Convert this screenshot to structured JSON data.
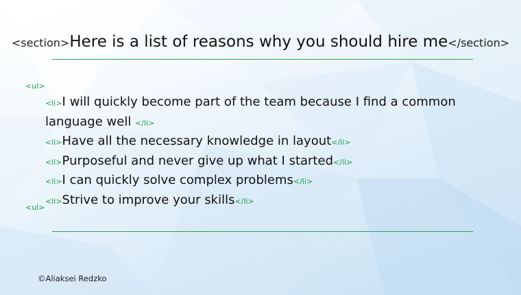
{
  "slide": {
    "title": {
      "open_tag": "<section>",
      "text": "Here is a list of reasons why you should hire me",
      "close_tag": "</section>"
    },
    "list": {
      "open_tag": "<ul>",
      "close_tag": "<ul>",
      "li_open": "<li>",
      "li_close": "</li>",
      "items": [
        "I will quickly become part of the team because I find a common language well ",
        "Have all the necessary knowledge in layout",
        "Purposeful and never give up what I started",
        "I can quickly solve complex problems",
        "Strive to improve your skills"
      ]
    },
    "credit": "©Aliaksei Redzko",
    "colors": {
      "accent_green": "#1e9c4a",
      "rule_green": "#2e9e52",
      "text": "#111111"
    }
  }
}
